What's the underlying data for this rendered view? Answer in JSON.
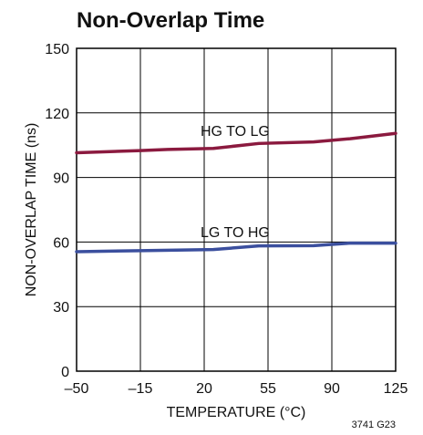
{
  "chart_data": {
    "type": "line",
    "title": "Non-Overlap Time",
    "xlabel": "TEMPERATURE (°C)",
    "ylabel": "NON-OVERLAP TIME (ns)",
    "xlim": [
      -50,
      125
    ],
    "ylim": [
      0,
      150
    ],
    "x_ticks": [
      -50,
      -15,
      20,
      55,
      90,
      125
    ],
    "x_tick_labels": [
      "–50",
      "–15",
      "20",
      "55",
      "90",
      "125"
    ],
    "y_ticks": [
      0,
      30,
      60,
      90,
      120,
      150
    ],
    "y_tick_labels": [
      "0",
      "30",
      "60",
      "90",
      "120",
      "150"
    ],
    "grid": true,
    "series": [
      {
        "name": "HG TO LG",
        "color": "#8b1a3f",
        "x": [
          -50,
          -15,
          0,
          25,
          50,
          80,
          100,
          125
        ],
        "y": [
          101.5,
          102.5,
          103,
          103.5,
          105.8,
          106.5,
          108,
          110.5
        ]
      },
      {
        "name": "LG TO HG",
        "color": "#3b4f9e",
        "x": [
          -50,
          -15,
          25,
          50,
          80,
          100,
          125
        ],
        "y": [
          55.5,
          56,
          56.5,
          58.2,
          58.3,
          59.5,
          59.5
        ]
      }
    ],
    "figure_ref": "3741 G23"
  }
}
